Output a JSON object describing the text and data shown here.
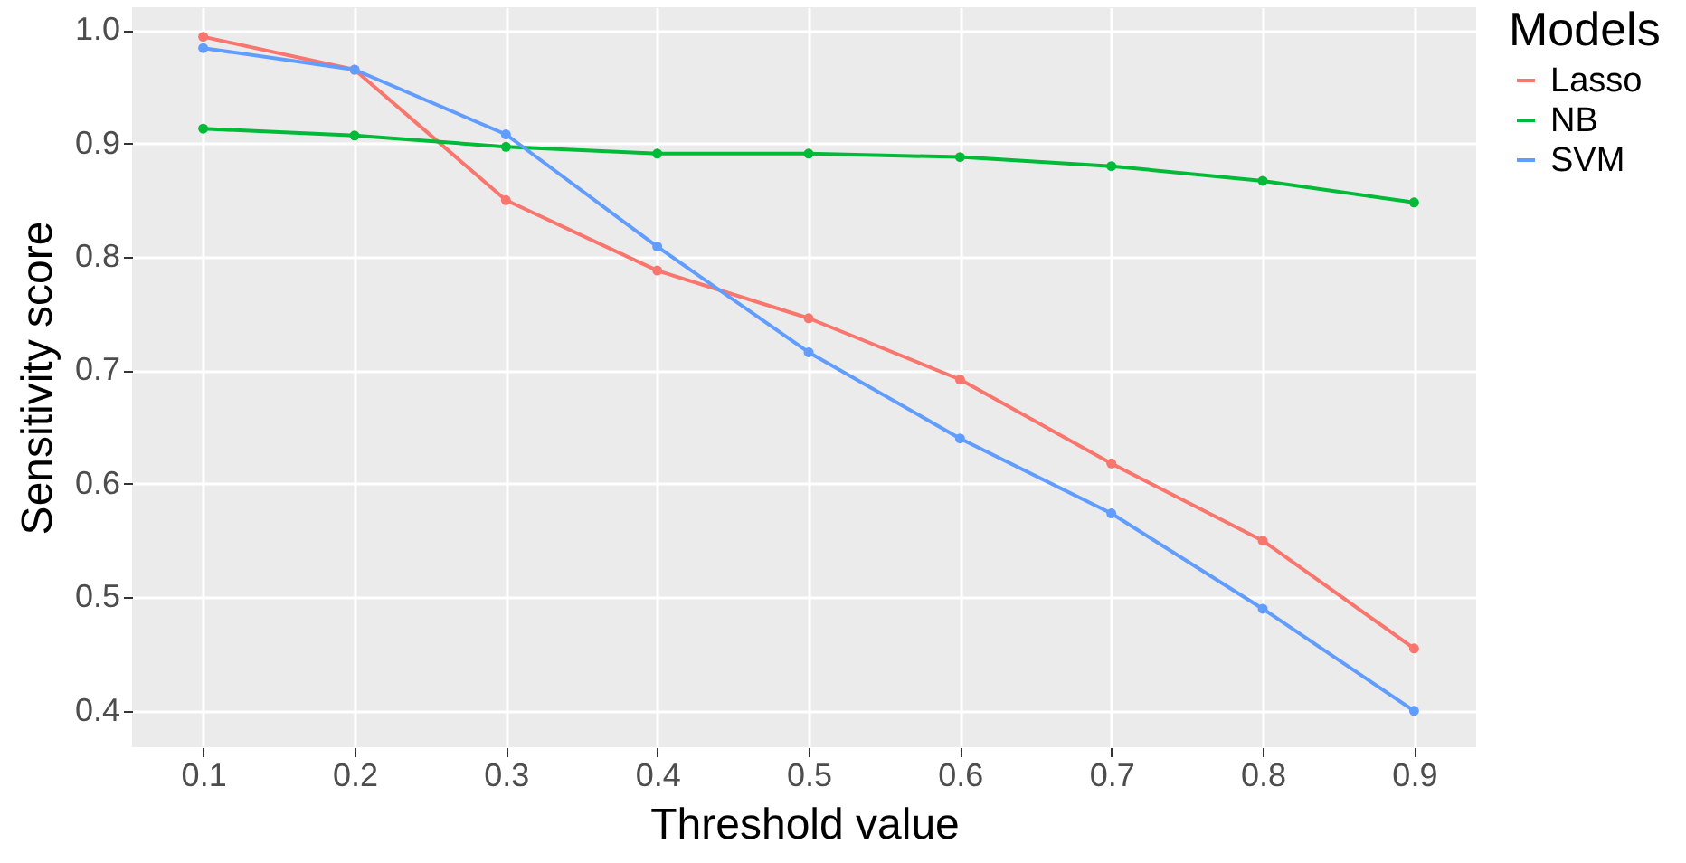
{
  "chart_data": {
    "type": "line",
    "xlabel": "Threshold value",
    "ylabel": "Sensitivity score",
    "legend_title": "Models",
    "legend": "right",
    "grid": true,
    "marker": "circle",
    "line_style": "solid",
    "x": [
      0.1,
      0.2,
      0.3,
      0.4,
      0.5,
      0.6,
      0.7,
      0.8,
      0.9
    ],
    "xlim": [
      0.053,
      0.941
    ],
    "xticks": [
      0.1,
      0.2,
      0.3,
      0.4,
      0.5,
      0.6,
      0.7,
      0.8,
      0.9
    ],
    "ylim": [
      0.368,
      1.02
    ],
    "yticks": [
      0.4,
      0.5,
      0.6,
      0.7,
      0.8,
      0.9,
      {
        "value": 1,
        "label": "1.0"
      }
    ],
    "series": [
      {
        "name": "Lasso",
        "color": "#f8766d",
        "values": [
          0.994,
          0.965,
          0.85,
          0.788,
          0.746,
          0.692,
          0.618,
          0.55,
          0.455
        ]
      },
      {
        "name": "NB",
        "color": "#00ba38",
        "values": [
          0.913,
          0.907,
          0.897,
          0.891,
          0.891,
          0.888,
          0.88,
          0.867,
          0.848
        ]
      },
      {
        "name": "SVM",
        "color": "#619cff",
        "values": [
          0.984,
          0.965,
          0.908,
          0.809,
          0.716,
          0.64,
          0.574,
          0.49,
          0.4
        ]
      }
    ]
  }
}
